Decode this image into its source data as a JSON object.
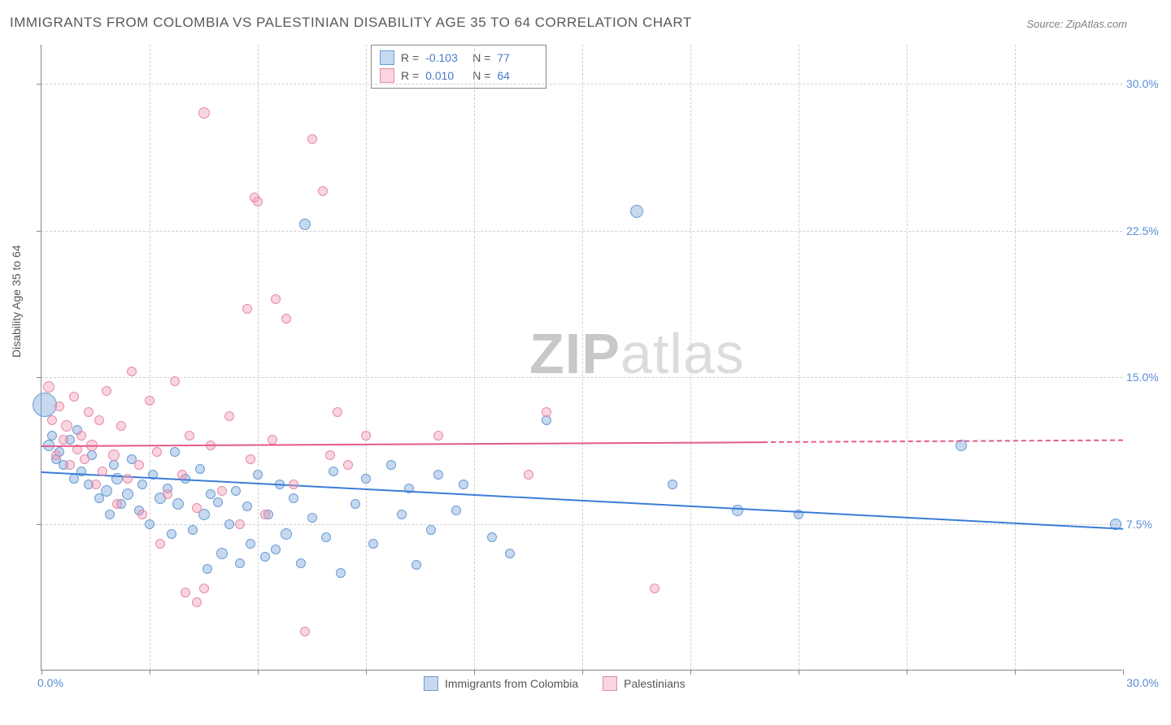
{
  "title": "IMMIGRANTS FROM COLOMBIA VS PALESTINIAN DISABILITY AGE 35 TO 64 CORRELATION CHART",
  "source": "Source: ZipAtlas.com",
  "y_axis_label": "Disability Age 35 to 64",
  "watermark_bold": "ZIP",
  "watermark_light": "atlas",
  "chart": {
    "type": "scatter",
    "xlim": [
      0,
      30
    ],
    "ylim": [
      0,
      32
    ],
    "x_tick_labels": [
      "0.0%",
      "30.0%"
    ],
    "y_ticks": [
      {
        "value": 7.5,
        "label": "7.5%"
      },
      {
        "value": 15.0,
        "label": "15.0%"
      },
      {
        "value": 22.5,
        "label": "22.5%"
      },
      {
        "value": 30.0,
        "label": "30.0%"
      }
    ],
    "x_minor_ticks": [
      0,
      3,
      6,
      9,
      12,
      15,
      18,
      21,
      24,
      27,
      30
    ],
    "background_color": "#ffffff",
    "grid_color": "#d0d0d0",
    "axis_color": "#888888",
    "tick_label_color": "#5a8dd6"
  },
  "series": [
    {
      "name": "Immigrants from Colombia",
      "color_fill": "rgba(130,170,220,0.45)",
      "color_stroke": "#6a9bd4",
      "trend_color": "#3b7dd8",
      "R": "-0.103",
      "N": "77",
      "trend": {
        "x1": 0,
        "y1": 10.2,
        "x2": 30,
        "y2": 7.3,
        "dash_from_x": 30
      },
      "points": [
        {
          "x": 0.1,
          "y": 13.6,
          "r": 15
        },
        {
          "x": 0.2,
          "y": 11.5,
          "r": 7
        },
        {
          "x": 0.3,
          "y": 12.0,
          "r": 6
        },
        {
          "x": 0.4,
          "y": 10.8,
          "r": 6
        },
        {
          "x": 0.5,
          "y": 11.2,
          "r": 6
        },
        {
          "x": 0.6,
          "y": 10.5,
          "r": 6
        },
        {
          "x": 0.8,
          "y": 11.8,
          "r": 6
        },
        {
          "x": 0.9,
          "y": 9.8,
          "r": 6
        },
        {
          "x": 1.0,
          "y": 12.3,
          "r": 6
        },
        {
          "x": 1.1,
          "y": 10.2,
          "r": 6
        },
        {
          "x": 1.3,
          "y": 9.5,
          "r": 6
        },
        {
          "x": 1.4,
          "y": 11.0,
          "r": 6
        },
        {
          "x": 1.6,
          "y": 8.8,
          "r": 6
        },
        {
          "x": 1.8,
          "y": 9.2,
          "r": 7
        },
        {
          "x": 1.9,
          "y": 8.0,
          "r": 6
        },
        {
          "x": 2.0,
          "y": 10.5,
          "r": 6
        },
        {
          "x": 2.1,
          "y": 9.8,
          "r": 7
        },
        {
          "x": 2.2,
          "y": 8.5,
          "r": 6
        },
        {
          "x": 2.4,
          "y": 9.0,
          "r": 7
        },
        {
          "x": 2.5,
          "y": 10.8,
          "r": 6
        },
        {
          "x": 2.7,
          "y": 8.2,
          "r": 6
        },
        {
          "x": 2.8,
          "y": 9.5,
          "r": 6
        },
        {
          "x": 3.0,
          "y": 7.5,
          "r": 6
        },
        {
          "x": 3.1,
          "y": 10.0,
          "r": 6
        },
        {
          "x": 3.3,
          "y": 8.8,
          "r": 7
        },
        {
          "x": 3.5,
          "y": 9.3,
          "r": 6
        },
        {
          "x": 3.6,
          "y": 7.0,
          "r": 6
        },
        {
          "x": 3.7,
          "y": 11.2,
          "r": 6
        },
        {
          "x": 3.8,
          "y": 8.5,
          "r": 7
        },
        {
          "x": 4.0,
          "y": 9.8,
          "r": 6
        },
        {
          "x": 4.2,
          "y": 7.2,
          "r": 6
        },
        {
          "x": 4.4,
          "y": 10.3,
          "r": 6
        },
        {
          "x": 4.5,
          "y": 8.0,
          "r": 7
        },
        {
          "x": 4.6,
          "y": 5.2,
          "r": 6
        },
        {
          "x": 4.7,
          "y": 9.0,
          "r": 6
        },
        {
          "x": 4.9,
          "y": 8.6,
          "r": 6
        },
        {
          "x": 5.0,
          "y": 6.0,
          "r": 7
        },
        {
          "x": 5.2,
          "y": 7.5,
          "r": 6
        },
        {
          "x": 5.4,
          "y": 9.2,
          "r": 6
        },
        {
          "x": 5.5,
          "y": 5.5,
          "r": 6
        },
        {
          "x": 5.7,
          "y": 8.4,
          "r": 6
        },
        {
          "x": 5.8,
          "y": 6.5,
          "r": 6
        },
        {
          "x": 6.0,
          "y": 10.0,
          "r": 6
        },
        {
          "x": 6.2,
          "y": 5.8,
          "r": 6
        },
        {
          "x": 6.3,
          "y": 8.0,
          "r": 6
        },
        {
          "x": 6.5,
          "y": 6.2,
          "r": 6
        },
        {
          "x": 6.6,
          "y": 9.5,
          "r": 6
        },
        {
          "x": 6.8,
          "y": 7.0,
          "r": 7
        },
        {
          "x": 7.0,
          "y": 8.8,
          "r": 6
        },
        {
          "x": 7.2,
          "y": 5.5,
          "r": 6
        },
        {
          "x": 7.3,
          "y": 22.8,
          "r": 7
        },
        {
          "x": 7.5,
          "y": 7.8,
          "r": 6
        },
        {
          "x": 7.9,
          "y": 6.8,
          "r": 6
        },
        {
          "x": 8.1,
          "y": 10.2,
          "r": 6
        },
        {
          "x": 8.3,
          "y": 5.0,
          "r": 6
        },
        {
          "x": 8.7,
          "y": 8.5,
          "r": 6
        },
        {
          "x": 9.0,
          "y": 9.8,
          "r": 6
        },
        {
          "x": 9.2,
          "y": 6.5,
          "r": 6
        },
        {
          "x": 9.7,
          "y": 10.5,
          "r": 6
        },
        {
          "x": 10.0,
          "y": 8.0,
          "r": 6
        },
        {
          "x": 10.2,
          "y": 9.3,
          "r": 6
        },
        {
          "x": 10.4,
          "y": 5.4,
          "r": 6
        },
        {
          "x": 10.8,
          "y": 7.2,
          "r": 6
        },
        {
          "x": 11.0,
          "y": 10.0,
          "r": 6
        },
        {
          "x": 11.5,
          "y": 8.2,
          "r": 6
        },
        {
          "x": 11.7,
          "y": 9.5,
          "r": 6
        },
        {
          "x": 12.5,
          "y": 6.8,
          "r": 6
        },
        {
          "x": 13.0,
          "y": 6.0,
          "r": 6
        },
        {
          "x": 14.0,
          "y": 12.8,
          "r": 6
        },
        {
          "x": 16.5,
          "y": 23.5,
          "r": 8
        },
        {
          "x": 17.5,
          "y": 9.5,
          "r": 6
        },
        {
          "x": 19.3,
          "y": 8.2,
          "r": 7
        },
        {
          "x": 21.0,
          "y": 8.0,
          "r": 6
        },
        {
          "x": 25.5,
          "y": 11.5,
          "r": 7
        },
        {
          "x": 29.8,
          "y": 7.5,
          "r": 7
        }
      ]
    },
    {
      "name": "Palestinians",
      "color_fill": "rgba(240,150,175,0.40)",
      "color_stroke": "#e68aa8",
      "trend_color": "#e65a8a",
      "R": "0.010",
      "N": "64",
      "trend": {
        "x1": 0,
        "y1": 11.5,
        "x2": 20,
        "y2": 11.7,
        "dash_from_x": 20,
        "dash_to_x": 30,
        "dash_y": 11.8
      },
      "points": [
        {
          "x": 0.2,
          "y": 14.5,
          "r": 7
        },
        {
          "x": 0.3,
          "y": 12.8,
          "r": 6
        },
        {
          "x": 0.4,
          "y": 11.0,
          "r": 6
        },
        {
          "x": 0.5,
          "y": 13.5,
          "r": 6
        },
        {
          "x": 0.6,
          "y": 11.8,
          "r": 6
        },
        {
          "x": 0.7,
          "y": 12.5,
          "r": 7
        },
        {
          "x": 0.8,
          "y": 10.5,
          "r": 6
        },
        {
          "x": 0.9,
          "y": 14.0,
          "r": 6
        },
        {
          "x": 1.0,
          "y": 11.3,
          "r": 6
        },
        {
          "x": 1.1,
          "y": 12.0,
          "r": 6
        },
        {
          "x": 1.2,
          "y": 10.8,
          "r": 6
        },
        {
          "x": 1.3,
          "y": 13.2,
          "r": 6
        },
        {
          "x": 1.4,
          "y": 11.5,
          "r": 7
        },
        {
          "x": 1.5,
          "y": 9.5,
          "r": 6
        },
        {
          "x": 1.6,
          "y": 12.8,
          "r": 6
        },
        {
          "x": 1.7,
          "y": 10.2,
          "r": 6
        },
        {
          "x": 1.8,
          "y": 14.3,
          "r": 6
        },
        {
          "x": 2.0,
          "y": 11.0,
          "r": 7
        },
        {
          "x": 2.1,
          "y": 8.5,
          "r": 6
        },
        {
          "x": 2.2,
          "y": 12.5,
          "r": 6
        },
        {
          "x": 2.4,
          "y": 9.8,
          "r": 6
        },
        {
          "x": 2.5,
          "y": 15.3,
          "r": 6
        },
        {
          "x": 2.7,
          "y": 10.5,
          "r": 6
        },
        {
          "x": 2.8,
          "y": 8.0,
          "r": 6
        },
        {
          "x": 3.0,
          "y": 13.8,
          "r": 6
        },
        {
          "x": 3.2,
          "y": 11.2,
          "r": 6
        },
        {
          "x": 3.3,
          "y": 6.5,
          "r": 6
        },
        {
          "x": 3.5,
          "y": 9.0,
          "r": 6
        },
        {
          "x": 3.7,
          "y": 14.8,
          "r": 6
        },
        {
          "x": 3.9,
          "y": 10.0,
          "r": 6
        },
        {
          "x": 4.0,
          "y": 4.0,
          "r": 6
        },
        {
          "x": 4.1,
          "y": 12.0,
          "r": 6
        },
        {
          "x": 4.3,
          "y": 8.3,
          "r": 6
        },
        {
          "x": 4.3,
          "y": 3.5,
          "r": 6
        },
        {
          "x": 4.5,
          "y": 4.2,
          "r": 6
        },
        {
          "x": 4.5,
          "y": 28.5,
          "r": 7
        },
        {
          "x": 4.7,
          "y": 11.5,
          "r": 6
        },
        {
          "x": 5.0,
          "y": 9.2,
          "r": 6
        },
        {
          "x": 5.2,
          "y": 13.0,
          "r": 6
        },
        {
          "x": 5.5,
          "y": 7.5,
          "r": 6
        },
        {
          "x": 5.7,
          "y": 18.5,
          "r": 6
        },
        {
          "x": 5.8,
          "y": 10.8,
          "r": 6
        },
        {
          "x": 5.9,
          "y": 24.2,
          "r": 6
        },
        {
          "x": 6.0,
          "y": 24.0,
          "r": 6
        },
        {
          "x": 6.2,
          "y": 8.0,
          "r": 6
        },
        {
          "x": 6.4,
          "y": 11.8,
          "r": 6
        },
        {
          "x": 6.5,
          "y": 19.0,
          "r": 6
        },
        {
          "x": 6.8,
          "y": 18.0,
          "r": 6
        },
        {
          "x": 7.0,
          "y": 9.5,
          "r": 6
        },
        {
          "x": 7.3,
          "y": 2.0,
          "r": 6
        },
        {
          "x": 7.5,
          "y": 27.2,
          "r": 6
        },
        {
          "x": 7.8,
          "y": 24.5,
          "r": 6
        },
        {
          "x": 8.0,
          "y": 11.0,
          "r": 6
        },
        {
          "x": 8.2,
          "y": 13.2,
          "r": 6
        },
        {
          "x": 8.5,
          "y": 10.5,
          "r": 6
        },
        {
          "x": 9.0,
          "y": 12.0,
          "r": 6
        },
        {
          "x": 11.0,
          "y": 12.0,
          "r": 6
        },
        {
          "x": 13.5,
          "y": 10.0,
          "r": 6
        },
        {
          "x": 14.0,
          "y": 13.2,
          "r": 6
        },
        {
          "x": 17.0,
          "y": 4.2,
          "r": 6
        }
      ]
    }
  ],
  "legend_bottom": [
    {
      "label": "Immigrants from Colombia",
      "fill": "rgba(130,170,220,0.45)",
      "stroke": "#6a9bd4"
    },
    {
      "label": "Palestinians",
      "fill": "rgba(240,150,175,0.40)",
      "stroke": "#e68aa8"
    }
  ]
}
